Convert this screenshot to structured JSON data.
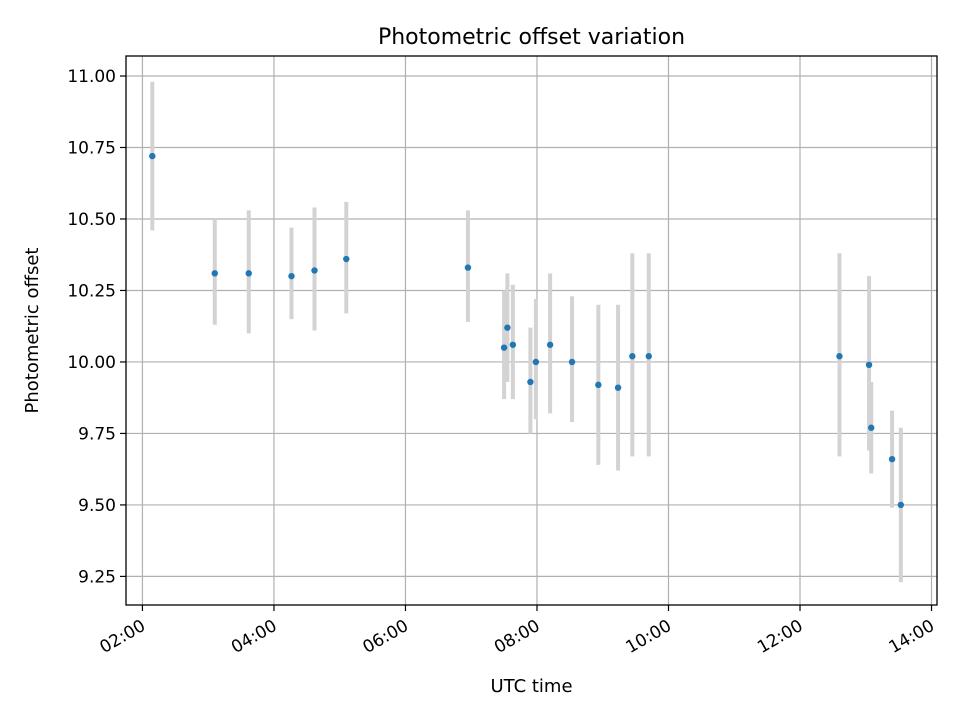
{
  "chart_data": {
    "type": "scatter",
    "title": "Photometric offset variation",
    "xlabel": "UTC time",
    "ylabel": "Photometric offset",
    "xlim": [
      "01:45",
      "14:05"
    ],
    "ylim": [
      9.15,
      11.07
    ],
    "x_ticks": [
      "02:00",
      "04:00",
      "06:00",
      "08:00",
      "10:00",
      "12:00",
      "14:00"
    ],
    "y_ticks": [
      9.25,
      9.5,
      9.75,
      10.0,
      10.25,
      10.5,
      10.75,
      11.0
    ],
    "y_tick_labels": [
      "9.25",
      "9.50",
      "9.75",
      "10.00",
      "10.25",
      "10.50",
      "10.75",
      "11.00"
    ],
    "grid": true,
    "legend": "none",
    "colors": {
      "marker": "#1f77b4",
      "errorbar": "#d3d3d3",
      "grid": "#b0b0b0"
    },
    "points": [
      {
        "x": "02:09",
        "y": 10.72,
        "ylow": 10.46,
        "yhigh": 10.98
      },
      {
        "x": "03:06",
        "y": 10.31,
        "ylow": 10.13,
        "yhigh": 10.5
      },
      {
        "x": "03:37",
        "y": 10.31,
        "ylow": 10.1,
        "yhigh": 10.53
      },
      {
        "x": "04:16",
        "y": 10.3,
        "ylow": 10.15,
        "yhigh": 10.47
      },
      {
        "x": "04:37",
        "y": 10.32,
        "ylow": 10.11,
        "yhigh": 10.54
      },
      {
        "x": "05:06",
        "y": 10.36,
        "ylow": 10.17,
        "yhigh": 10.56
      },
      {
        "x": "06:57",
        "y": 10.33,
        "ylow": 10.14,
        "yhigh": 10.53
      },
      {
        "x": "07:30",
        "y": 10.05,
        "ylow": 9.87,
        "yhigh": 10.25
      },
      {
        "x": "07:33",
        "y": 10.12,
        "ylow": 9.93,
        "yhigh": 10.31
      },
      {
        "x": "07:38",
        "y": 10.06,
        "ylow": 9.87,
        "yhigh": 10.27
      },
      {
        "x": "07:54",
        "y": 9.93,
        "ylow": 9.75,
        "yhigh": 10.12
      },
      {
        "x": "07:59",
        "y": 10.0,
        "ylow": 9.8,
        "yhigh": 10.22
      },
      {
        "x": "08:12",
        "y": 10.06,
        "ylow": 9.82,
        "yhigh": 10.31
      },
      {
        "x": "08:32",
        "y": 10.0,
        "ylow": 9.79,
        "yhigh": 10.23
      },
      {
        "x": "08:56",
        "y": 9.92,
        "ylow": 9.64,
        "yhigh": 10.2
      },
      {
        "x": "09:14",
        "y": 9.91,
        "ylow": 9.62,
        "yhigh": 10.2
      },
      {
        "x": "09:27",
        "y": 10.02,
        "ylow": 9.67,
        "yhigh": 10.38
      },
      {
        "x": "09:42",
        "y": 10.02,
        "ylow": 9.67,
        "yhigh": 10.38
      },
      {
        "x": "12:36",
        "y": 10.02,
        "ylow": 9.67,
        "yhigh": 10.38
      },
      {
        "x": "13:03",
        "y": 9.99,
        "ylow": 9.69,
        "yhigh": 10.3
      },
      {
        "x": "13:05",
        "y": 9.77,
        "ylow": 9.61,
        "yhigh": 9.93
      },
      {
        "x": "13:24",
        "y": 9.66,
        "ylow": 9.49,
        "yhigh": 9.83
      },
      {
        "x": "13:32",
        "y": 9.5,
        "ylow": 9.23,
        "yhigh": 9.77
      }
    ]
  }
}
